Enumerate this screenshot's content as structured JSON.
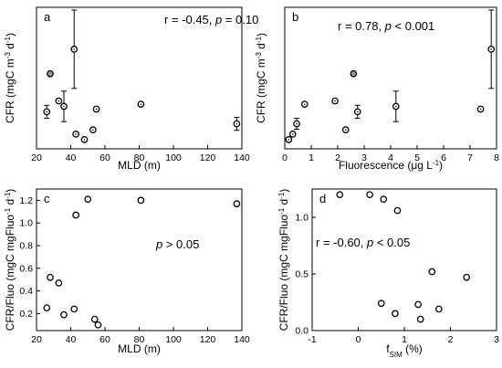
{
  "chart_data": [
    {
      "id": "a",
      "type": "scatter",
      "panel_label": "a",
      "annotation": "r = -0.45, p = 0.10",
      "annotation_parts": [
        "r = -0.45, ",
        "p",
        " = 0.10"
      ],
      "xlabel": "MLD (m)",
      "ylabel_parts": [
        "CFR (mgC m",
        "-3",
        " d",
        "-1",
        ")"
      ],
      "xlim": [
        20,
        140
      ],
      "ylim": [
        0,
        2.6
      ],
      "xticks": [
        20,
        40,
        60,
        80,
        100,
        120,
        140
      ],
      "yticks": [],
      "points": [
        {
          "x": 26,
          "y": 0.68,
          "err": 0.12
        },
        {
          "x": 28,
          "y": 1.38,
          "filled": true
        },
        {
          "x": 33,
          "y": 0.88
        },
        {
          "x": 36,
          "y": 0.78,
          "err": 0.28
        },
        {
          "x": 42,
          "y": 1.83,
          "err": 0.72
        },
        {
          "x": 43,
          "y": 0.27
        },
        {
          "x": 48,
          "y": 0.17
        },
        {
          "x": 53,
          "y": 0.35
        },
        {
          "x": 55,
          "y": 0.73
        },
        {
          "x": 81,
          "y": 0.82
        },
        {
          "x": 137,
          "y": 0.46,
          "err": 0.12
        }
      ]
    },
    {
      "id": "b",
      "type": "scatter",
      "panel_label": "b",
      "annotation": "r = 0.78, p < 0.001",
      "annotation_parts": [
        "r = 0.78, ",
        "p",
        " < 0.001"
      ],
      "xlabel_parts": [
        "Fluorescence (μg L",
        "-1",
        ")"
      ],
      "ylabel_parts": [
        "CFR (mgC m",
        "-3",
        " d",
        "-1",
        ")"
      ],
      "xlim": [
        0,
        8
      ],
      "ylim": [
        0,
        2.6
      ],
      "xticks": [
        0,
        1,
        2,
        3,
        4,
        5,
        6,
        7,
        8
      ],
      "yticks": [],
      "points": [
        {
          "x": 0.15,
          "y": 0.17
        },
        {
          "x": 0.3,
          "y": 0.27
        },
        {
          "x": 0.45,
          "y": 0.46,
          "err": 0.1
        },
        {
          "x": 0.75,
          "y": 0.82
        },
        {
          "x": 1.9,
          "y": 0.88
        },
        {
          "x": 2.3,
          "y": 0.35
        },
        {
          "x": 2.6,
          "y": 1.38,
          "filled": true
        },
        {
          "x": 2.75,
          "y": 0.68,
          "err": 0.12
        },
        {
          "x": 4.2,
          "y": 0.78,
          "err": 0.28
        },
        {
          "x": 7.4,
          "y": 0.73
        },
        {
          "x": 7.8,
          "y": 1.83,
          "err": 0.72
        }
      ]
    },
    {
      "id": "c",
      "type": "scatter",
      "panel_label": "c",
      "annotation": "p > 0.05",
      "annotation_parts": [
        "",
        "p",
        " > 0.05"
      ],
      "xlabel": "MLD (m)",
      "ylabel_parts": [
        "CFR/Fluo (mgC mgFluo",
        "-1",
        " d",
        "-1",
        ")"
      ],
      "xlim": [
        20,
        140
      ],
      "ylim": [
        0.05,
        1.3
      ],
      "xticks": [
        20,
        40,
        60,
        80,
        100,
        120,
        140
      ],
      "yticks": [
        0.2,
        0.4,
        0.6,
        0.8,
        1.0,
        1.2
      ],
      "ytick_labels": [
        "0.2",
        "0.4",
        "0.6",
        "0.8",
        "1.0",
        "1.2"
      ],
      "points": [
        {
          "x": 26,
          "y": 0.25
        },
        {
          "x": 28,
          "y": 0.52
        },
        {
          "x": 33,
          "y": 0.47
        },
        {
          "x": 36,
          "y": 0.19
        },
        {
          "x": 42,
          "y": 0.24
        },
        {
          "x": 43,
          "y": 1.07
        },
        {
          "x": 50,
          "y": 1.21
        },
        {
          "x": 54,
          "y": 0.15
        },
        {
          "x": 56,
          "y": 0.1
        },
        {
          "x": 81,
          "y": 1.2
        },
        {
          "x": 137,
          "y": 1.17
        }
      ]
    },
    {
      "id": "d",
      "type": "scatter",
      "panel_label": "d",
      "annotation": "r = -0.60, p < 0.05",
      "annotation_parts": [
        "r = -0.60, ",
        "p",
        " < 0.05"
      ],
      "xlabel_parts": [
        "f",
        "SIM",
        " (%)"
      ],
      "ylabel_parts": [
        "CFR/Fluo (mgC mgFluo",
        "-1",
        " d",
        "-1",
        ")"
      ],
      "xlim": [
        -1,
        3
      ],
      "ylim": [
        0,
        1.25
      ],
      "xticks": [
        -1,
        0,
        1,
        2,
        3
      ],
      "yticks": [
        0,
        0.5,
        1.0
      ],
      "ytick_labels": [
        "0.0",
        "0.5",
        "1.0"
      ],
      "points": [
        {
          "x": -0.4,
          "y": 1.2
        },
        {
          "x": 0.25,
          "y": 1.2
        },
        {
          "x": 0.5,
          "y": 0.24
        },
        {
          "x": 0.55,
          "y": 1.16
        },
        {
          "x": 0.8,
          "y": 0.15
        },
        {
          "x": 0.85,
          "y": 1.06
        },
        {
          "x": 1.3,
          "y": 0.23
        },
        {
          "x": 1.35,
          "y": 0.1
        },
        {
          "x": 1.6,
          "y": 0.52
        },
        {
          "x": 1.75,
          "y": 0.19
        },
        {
          "x": 2.35,
          "y": 0.47
        }
      ]
    }
  ]
}
